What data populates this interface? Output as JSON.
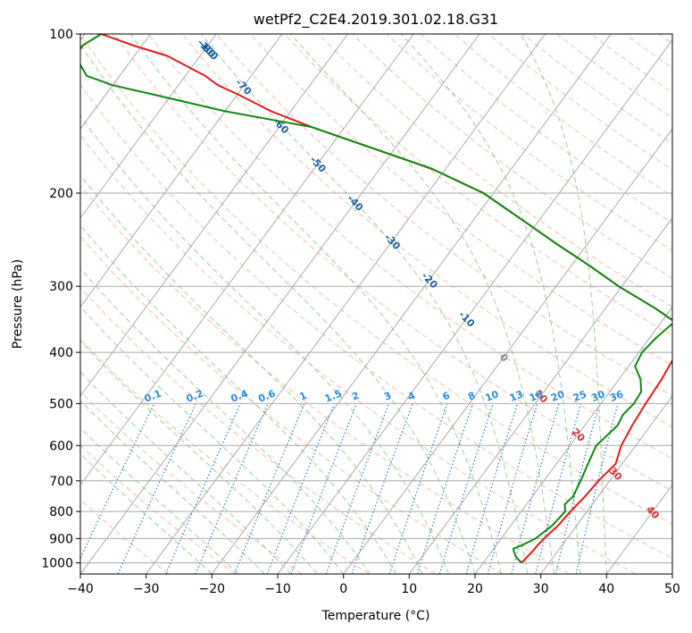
{
  "chart_data": {
    "type": "line",
    "title": "wetPf2_C2E4.2019.301.02.18.G31",
    "xlabel": "Temperature (°C)",
    "ylabel": "Pressure (hPa)",
    "xlim": [
      -40,
      50
    ],
    "ylim": [
      1050,
      100
    ],
    "y_scale": "log",
    "x_ticks": [
      -40,
      -30,
      -20,
      -10,
      0,
      10,
      20,
      30,
      40,
      50
    ],
    "y_ticks": [
      100,
      200,
      300,
      400,
      500,
      600,
      700,
      800,
      900,
      1000
    ],
    "grid": true,
    "colors": {
      "temperature": "#e31a1c",
      "dewpoint": "#118811",
      "dry_adiabat": "#f4a582",
      "moist_adiabat": "#7fc27f",
      "mixing_ratio": "#1f78d1",
      "isotherm_label": "#1f5f9f"
    },
    "isotherm_labels": [
      -100,
      -90,
      -80,
      -70,
      -60,
      -50,
      -40,
      -30,
      -20,
      -10,
      0,
      10,
      20,
      30,
      40
    ],
    "mixing_ratio_labels": [
      "0.1",
      "0.2",
      "0.4",
      "0.6",
      "1",
      "1.5",
      "2",
      "3",
      "4",
      "6",
      "8",
      "10",
      "13",
      "16",
      "20",
      "25",
      "30",
      "36"
    ],
    "series": [
      {
        "key": "temperature",
        "p": [
          1000,
          975,
          950,
          925,
          900,
          850,
          800,
          750,
          700,
          650,
          600,
          550,
          500,
          450,
          400,
          375,
          350,
          330,
          300,
          275,
          250,
          225,
          200,
          180,
          165,
          150,
          140,
          130,
          125,
          120,
          110,
          105,
          100
        ],
        "t": [
          25.8,
          26.0,
          26.2,
          26.3,
          26.5,
          27.2,
          27.5,
          28.0,
          28.3,
          29.0,
          27.8,
          27.2,
          26.8,
          26.5,
          25.8,
          24.0,
          22.0,
          17.5,
          9.5,
          3.0,
          -4.5,
          -12.5,
          -21.5,
          -32.0,
          -43.0,
          -55.0,
          -63.0,
          -70.0,
          -74.0,
          -77.0,
          -85.0,
          -91.5,
          -97.5
        ]
      },
      {
        "key": "dewpoint",
        "p": [
          1000,
          975,
          950,
          940,
          925,
          900,
          850,
          800,
          775,
          750,
          700,
          650,
          600,
          550,
          525,
          500,
          475,
          450,
          425,
          400,
          375,
          350,
          330,
          300,
          275,
          250,
          225,
          200,
          180,
          165,
          150,
          140,
          130,
          125,
          120,
          110,
          105,
          100
        ],
        "t": [
          25.8,
          24.3,
          23.3,
          23.0,
          24.0,
          25.2,
          26.3,
          26.7,
          25.8,
          26.2,
          25.6,
          24.8,
          24.0,
          25.0,
          24.6,
          25.0,
          24.8,
          23.3,
          21.0,
          20.5,
          21.0,
          22.0,
          17.5,
          9.5,
          3.0,
          -4.5,
          -12.5,
          -21.5,
          -32.0,
          -43.0,
          -55.0,
          -70.0,
          -83.0,
          -90.0,
          -95.0,
          -99.0,
          -99.0,
          -97.5
        ]
      }
    ]
  }
}
